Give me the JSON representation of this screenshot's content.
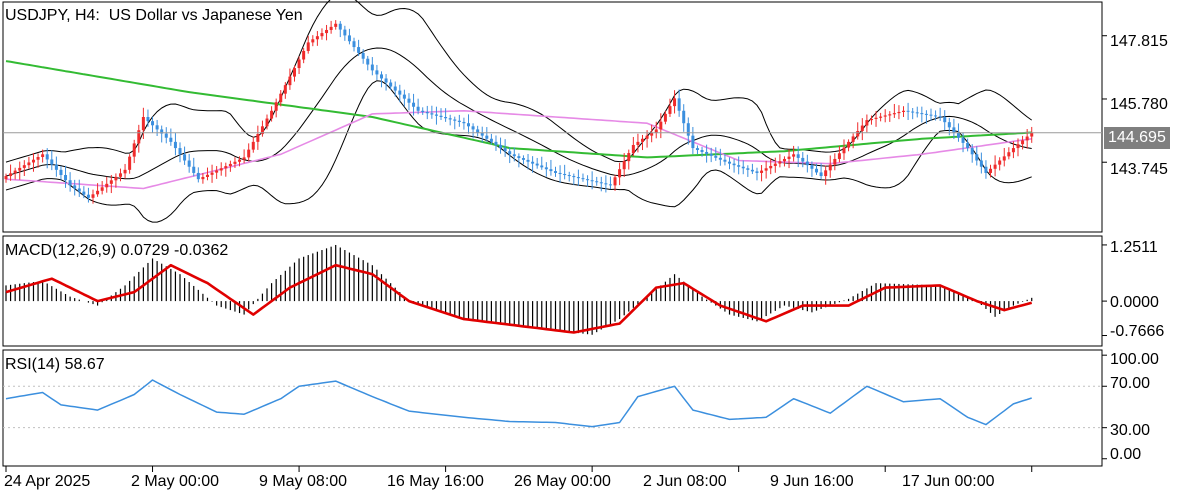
{
  "title": {
    "symbol": "USDJPY",
    "timeframe": "H4:",
    "description": "US Dollar vs Japanese Yen"
  },
  "current_price_label": "144.695",
  "colors": {
    "bull": "#ef2b2b",
    "bear": "#3b8fde",
    "ma_slow": "#33bb33",
    "ma_fast": "#e68ae6",
    "bands": "#000000",
    "macd_signal": "#e00000",
    "macd_hist": "#000000",
    "rsi": "#3b8fde",
    "current_line": "#9a9a9a"
  },
  "macd": {
    "label": "MACD(12,26,9)",
    "main": "0.0729",
    "signal": "-0.0362",
    "ticks": [
      "1.2511",
      "0.0000",
      "-0.7666"
    ]
  },
  "rsi": {
    "label": "RSI(14)",
    "value": "58.67",
    "ticks": [
      "100.00",
      "70.00",
      "30.00",
      "0.00"
    ]
  },
  "chart_data": {
    "type": "candlestick",
    "price_axis_ticks": [
      "147.815",
      "145.780",
      "143.745"
    ],
    "x_tick_labels": [
      "24 Apr 2025",
      "2 May 00:00",
      "9 May 08:00",
      "16 May 16:00",
      "26 May 00:00",
      "2 Jun 08:00",
      "9 Jun 16:00",
      "17 Jun 00:00"
    ],
    "x_tick_index": [
      0,
      32,
      64,
      96,
      128,
      160,
      192,
      224
    ],
    "close_path": [
      [
        0,
        143.3
      ],
      [
        8,
        144.0
      ],
      [
        14,
        143.0
      ],
      [
        18,
        142.6
      ],
      [
        26,
        143.5
      ],
      [
        30,
        145.2
      ],
      [
        36,
        144.4
      ],
      [
        42,
        143.2
      ],
      [
        52,
        143.9
      ],
      [
        58,
        145.4
      ],
      [
        66,
        147.6
      ],
      [
        72,
        148.2
      ],
      [
        80,
        146.7
      ],
      [
        90,
        145.4
      ],
      [
        100,
        145.0
      ],
      [
        110,
        144.0
      ],
      [
        120,
        143.4
      ],
      [
        132,
        143.0
      ],
      [
        137,
        144.3
      ],
      [
        142,
        144.8
      ],
      [
        146,
        145.8
      ],
      [
        150,
        144.2
      ],
      [
        158,
        143.7
      ],
      [
        164,
        143.4
      ],
      [
        172,
        144.0
      ],
      [
        178,
        143.3
      ],
      [
        184,
        144.4
      ],
      [
        188,
        145.1
      ],
      [
        196,
        145.4
      ],
      [
        204,
        145.2
      ],
      [
        210,
        144.2
      ],
      [
        214,
        143.4
      ],
      [
        220,
        144.2
      ],
      [
        224,
        144.695
      ]
    ],
    "moving_average_slow_path": [
      [
        0,
        147.0
      ],
      [
        40,
        146.0
      ],
      [
        80,
        145.2
      ],
      [
        110,
        144.2
      ],
      [
        140,
        143.9
      ],
      [
        170,
        144.1
      ],
      [
        200,
        144.5
      ],
      [
        224,
        144.7
      ]
    ],
    "moving_average_fast_path": [
      [
        0,
        143.2
      ],
      [
        30,
        142.9
      ],
      [
        60,
        144.0
      ],
      [
        80,
        145.3
      ],
      [
        100,
        145.4
      ],
      [
        120,
        145.2
      ],
      [
        140,
        145.0
      ],
      [
        160,
        143.8
      ],
      [
        180,
        143.7
      ],
      [
        200,
        144.0
      ],
      [
        224,
        144.5
      ]
    ],
    "macd_histogram_path": [
      [
        0,
        0.35
      ],
      [
        8,
        0.45
      ],
      [
        14,
        0.1
      ],
      [
        20,
        -0.1
      ],
      [
        26,
        0.35
      ],
      [
        32,
        0.95
      ],
      [
        38,
        0.6
      ],
      [
        46,
        -0.1
      ],
      [
        52,
        -0.3
      ],
      [
        58,
        0.4
      ],
      [
        64,
        0.95
      ],
      [
        72,
        1.25
      ],
      [
        80,
        0.8
      ],
      [
        88,
        0.0
      ],
      [
        100,
        -0.4
      ],
      [
        116,
        -0.6
      ],
      [
        128,
        -0.75
      ],
      [
        134,
        -0.4
      ],
      [
        140,
        0.1
      ],
      [
        146,
        0.6
      ],
      [
        152,
        0.1
      ],
      [
        158,
        -0.3
      ],
      [
        164,
        -0.45
      ],
      [
        170,
        -0.1
      ],
      [
        176,
        -0.25
      ],
      [
        184,
        0.05
      ],
      [
        190,
        0.4
      ],
      [
        204,
        0.35
      ],
      [
        212,
        0.0
      ],
      [
        216,
        -0.35
      ],
      [
        220,
        -0.1
      ],
      [
        224,
        0.0729
      ]
    ],
    "macd_signal_path": [
      [
        0,
        0.2
      ],
      [
        10,
        0.5
      ],
      [
        20,
        0.0
      ],
      [
        28,
        0.2
      ],
      [
        36,
        0.8
      ],
      [
        44,
        0.4
      ],
      [
        54,
        -0.3
      ],
      [
        62,
        0.3
      ],
      [
        72,
        0.8
      ],
      [
        80,
        0.6
      ],
      [
        88,
        0.0
      ],
      [
        100,
        -0.4
      ],
      [
        112,
        -0.55
      ],
      [
        124,
        -0.7
      ],
      [
        134,
        -0.5
      ],
      [
        142,
        0.3
      ],
      [
        148,
        0.4
      ],
      [
        156,
        -0.1
      ],
      [
        166,
        -0.45
      ],
      [
        174,
        -0.1
      ],
      [
        184,
        -0.1
      ],
      [
        192,
        0.3
      ],
      [
        204,
        0.35
      ],
      [
        212,
        0.0
      ],
      [
        218,
        -0.2
      ],
      [
        224,
        -0.0362
      ]
    ],
    "rsi_path": [
      [
        0,
        58
      ],
      [
        8,
        64
      ],
      [
        12,
        52
      ],
      [
        20,
        47
      ],
      [
        28,
        62
      ],
      [
        32,
        76
      ],
      [
        38,
        62
      ],
      [
        46,
        45
      ],
      [
        52,
        43
      ],
      [
        60,
        58
      ],
      [
        64,
        70
      ],
      [
        72,
        75
      ],
      [
        80,
        60
      ],
      [
        88,
        46
      ],
      [
        100,
        40
      ],
      [
        110,
        36
      ],
      [
        120,
        35
      ],
      [
        128,
        31
      ],
      [
        134,
        35
      ],
      [
        138,
        60
      ],
      [
        146,
        70
      ],
      [
        150,
        47
      ],
      [
        158,
        38
      ],
      [
        166,
        40
      ],
      [
        172,
        58
      ],
      [
        180,
        44
      ],
      [
        188,
        70
      ],
      [
        196,
        55
      ],
      [
        204,
        58
      ],
      [
        210,
        40
      ],
      [
        214,
        33
      ],
      [
        220,
        53
      ],
      [
        224,
        58.67
      ]
    ]
  }
}
